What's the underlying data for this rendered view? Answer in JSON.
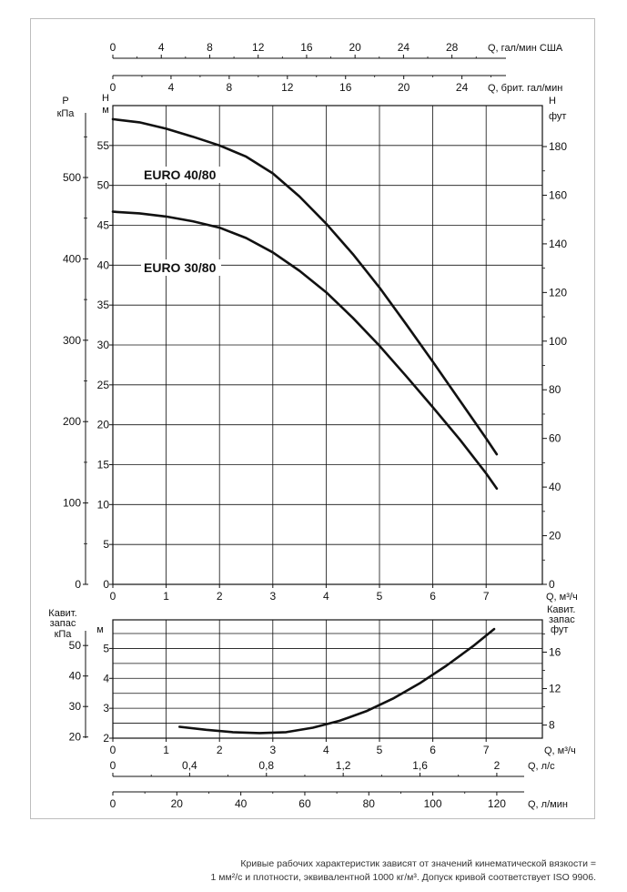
{
  "chart_data": [
    {
      "type": "line",
      "title": "",
      "series": [
        {
          "name": "EURO 40/80",
          "x": [
            0,
            0.5,
            1,
            1.5,
            2,
            2.5,
            3,
            3.5,
            4,
            4.5,
            5,
            5.5,
            6,
            6.5,
            7,
            7.2
          ],
          "y": [
            58.3,
            57.9,
            57.1,
            56.1,
            55.0,
            53.6,
            51.5,
            48.6,
            45.2,
            41.4,
            37.2,
            32.6,
            27.9,
            23.1,
            18.3,
            16.3
          ]
        },
        {
          "name": "EURO 30/80",
          "x": [
            0,
            0.5,
            1,
            1.5,
            2,
            2.5,
            3,
            3.5,
            4,
            4.5,
            5,
            5.5,
            6,
            6.5,
            7,
            7.2
          ],
          "y": [
            46.7,
            46.5,
            46.1,
            45.5,
            44.7,
            43.4,
            41.6,
            39.3,
            36.6,
            33.4,
            29.9,
            26.1,
            22.2,
            18.2,
            13.9,
            12.0
          ]
        }
      ],
      "xlim": [
        0,
        7.3
      ],
      "xticks": [
        "0",
        "1",
        "2",
        "3",
        "4",
        "5",
        "6",
        "7"
      ],
      "xlabel": "Q, м³/ч",
      "ylim": [
        0,
        60
      ],
      "yticks_left_m": [
        "0",
        "5",
        "10",
        "15",
        "20",
        "25",
        "30",
        "35",
        "40",
        "45",
        "50",
        "55"
      ],
      "ylabel_left_m": [
        "Н",
        "м"
      ],
      "yticks_left_kpa": [
        "0",
        "100",
        "200",
        "300",
        "400",
        "500"
      ],
      "ylabel_left_kpa": [
        "Р",
        "кПа"
      ],
      "yticks_right_ft": [
        "0",
        "20",
        "40",
        "60",
        "80",
        "100",
        "120",
        "140",
        "160",
        "180"
      ],
      "ylabel_right_ft": [
        "Н",
        "фут"
      ],
      "top_axis_us": {
        "ticks": [
          "0",
          "4",
          "8",
          "12",
          "16",
          "20",
          "24",
          "28"
        ],
        "label": "Q, гал/мин США"
      },
      "top_axis_uk": {
        "ticks": [
          "0",
          "4",
          "8",
          "12",
          "16",
          "20",
          "24"
        ],
        "label": "Q, брит. гал/мин"
      },
      "grid": true
    },
    {
      "type": "line",
      "title": "",
      "series": [
        {
          "name": "",
          "x": [
            1.25,
            1.75,
            2.25,
            2.75,
            3.25,
            3.75,
            4.25,
            4.75,
            5.25,
            5.75,
            6.25,
            6.75,
            7.15
          ],
          "y": [
            2.38,
            2.28,
            2.2,
            2.17,
            2.2,
            2.35,
            2.58,
            2.9,
            3.32,
            3.83,
            4.42,
            5.07,
            5.65
          ]
        }
      ],
      "xlim": [
        0,
        7.3
      ],
      "xticks": [
        "0",
        "1",
        "2",
        "3",
        "4",
        "5",
        "6",
        "7"
      ],
      "xlabel": "Q, м³/ч",
      "ylim": [
        2,
        6
      ],
      "yticks_left_m": [
        "2",
        "3",
        "4",
        "5"
      ],
      "ylabel_left_m": "м",
      "yticks_left_kpa": [
        "20",
        "30",
        "40",
        "50"
      ],
      "ylabel_left_kpa": [
        "Кавит.",
        "запас",
        "кПа"
      ],
      "yticks_right_ft": [
        "8",
        "12",
        "16"
      ],
      "ylabel_right_ft": [
        "Кавит.",
        "запас",
        "фут"
      ],
      "bottom_axis_ls": {
        "ticks": [
          "0",
          "0,4",
          "0,8",
          "1,2",
          "1,6",
          "2"
        ],
        "label": "Q, л/с"
      },
      "bottom_axis_lmin": {
        "ticks": [
          "0",
          "20",
          "40",
          "60",
          "80",
          "100",
          "120"
        ],
        "label": "Q, л/мин"
      },
      "grid": true
    }
  ],
  "footnote": {
    "line1": "Кривые рабочих характеристик зависят от значений кинематической вязкости =",
    "line2": "1 мм²/с и плотности, эквивалентной 1000 кг/м³. Допуск кривой соответствует ISO 9906."
  }
}
